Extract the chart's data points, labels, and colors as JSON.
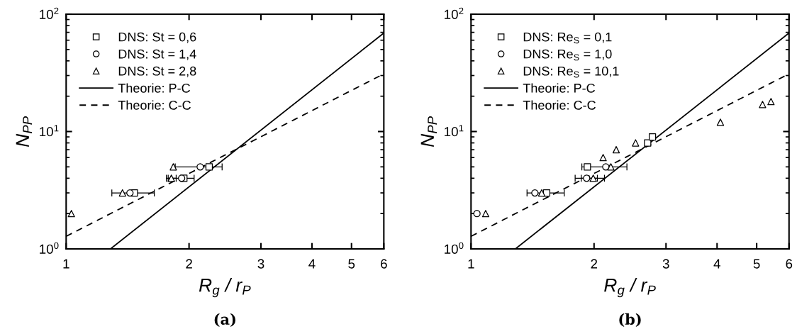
{
  "chart_data": [
    {
      "type": "scatter",
      "log": "xy",
      "xlabel": "R$_{g}$ / r$_{P}$",
      "ylabel": "N$_{PP}$",
      "xlim": [
        1,
        6
      ],
      "ylim": [
        1,
        100
      ],
      "xticks": [
        1,
        2,
        3,
        4,
        5,
        6
      ],
      "yticks": [
        {
          "value": 1,
          "label": "10$^{0}$"
        },
        {
          "value": 10,
          "label": "10$^{1}$"
        },
        {
          "value": 100,
          "label": "10$^{2}$"
        }
      ],
      "legend": "top left",
      "annotations": [
        "(a)"
      ],
      "series": [
        {
          "name": "DNS: St = 0,6",
          "marker": "square",
          "color": "#000000",
          "x": [
            1.469,
            1.942,
            2.24
          ],
          "values": [
            3,
            4,
            5
          ],
          "xerrors": [
            0.175,
            null,
            null
          ]
        },
        {
          "name": "DNS: St = 1,4",
          "marker": "circle",
          "color": "#000000",
          "x": [
            1.433,
            1.918,
            2.13
          ],
          "values": [
            3,
            4,
            5
          ],
          "xerrors": [
            null,
            0.14,
            0.28
          ]
        },
        {
          "name": "DNS: St = 2,8",
          "marker": "triangle",
          "color": "#000000",
          "x": [
            1.03,
            1.374,
            1.81,
            1.83
          ],
          "values": [
            2,
            3,
            4,
            5
          ],
          "xerrors": [
            null,
            null,
            0.05,
            null
          ]
        },
        {
          "name": "Theorie: P-C",
          "type": "line",
          "line_style": "solid",
          "marker": "none",
          "color": "#000000",
          "x": [
            1.284,
            6
          ],
          "values": [
            1,
            69
          ]
        },
        {
          "name": "Theorie: C-C",
          "type": "line",
          "line_style": "dashed",
          "marker": "none",
          "color": "#000000",
          "x": [
            1,
            6
          ],
          "values": [
            1.28,
            31
          ]
        }
      ]
    },
    {
      "type": "scatter",
      "log": "xy",
      "xlabel": "R$_{g}$ / r$_{P}$",
      "ylabel": "N$_{PP}$",
      "xlim": [
        1,
        6
      ],
      "ylim": [
        1,
        100
      ],
      "xticks": [
        1,
        2,
        3,
        4,
        5,
        6
      ],
      "yticks": [
        {
          "value": 1,
          "label": "10$^{0}$"
        },
        {
          "value": 10,
          "label": "10$^{1}$"
        },
        {
          "value": 100,
          "label": "10$^{2}$"
        }
      ],
      "legend": "top left",
      "annotations": [
        "(b)"
      ],
      "series": [
        {
          "name": "DNS: Re$_{S}$ = 0,1",
          "marker": "square",
          "color": "#000000",
          "x": [
            1.531,
            1.926,
            2.705,
            2.779
          ],
          "values": [
            3,
            5,
            8,
            9
          ],
          "xerrors": [
            0.16,
            null,
            null,
            null
          ]
        },
        {
          "name": "DNS: Re$_{S}$ = 1,0",
          "marker": "circle",
          "color": "#000000",
          "x": [
            1.034,
            1.433,
            1.918,
            2.137
          ],
          "values": [
            2,
            3,
            4,
            5
          ],
          "xerrors": [
            null,
            null,
            0.12,
            0.27
          ]
        },
        {
          "name": "DNS: Re$_{S}$ = 10,1",
          "marker": "triangle",
          "color": "#000000",
          "x": [
            1.086,
            1.489,
            1.991,
            2.105,
            2.199,
            2.266,
            2.527,
            4.076,
            5.168,
            5.42
          ],
          "values": [
            2,
            3,
            4,
            6,
            5,
            7,
            8,
            12,
            17,
            18
          ],
          "xerrors": [
            null,
            null,
            0.13,
            null,
            null,
            null,
            null,
            null,
            null,
            null
          ]
        },
        {
          "name": "Theorie: P-C",
          "type": "line",
          "line_style": "solid",
          "marker": "none",
          "color": "#000000",
          "x": [
            1.284,
            6
          ],
          "values": [
            1,
            69
          ]
        },
        {
          "name": "Theorie: C-C",
          "type": "line",
          "line_style": "dashed",
          "marker": "none",
          "color": "#000000",
          "x": [
            1,
            6
          ],
          "values": [
            1.28,
            31
          ]
        }
      ]
    }
  ]
}
